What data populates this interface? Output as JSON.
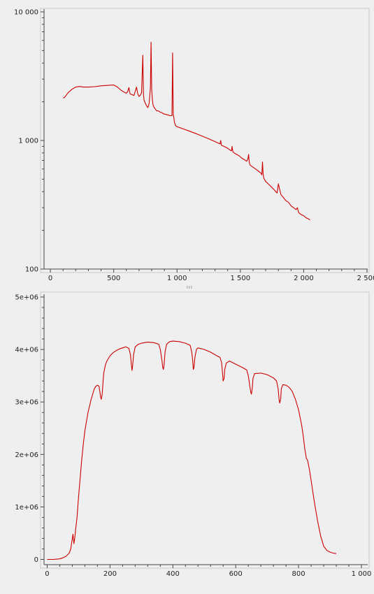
{
  "chart_data": [
    {
      "type": "line",
      "title": "",
      "xlabel": "",
      "ylabel": "",
      "xlim": [
        -50,
        2500
      ],
      "ylim": [
        100,
        10000
      ],
      "y_scale": "log",
      "grid": false,
      "legend": "none",
      "x_ticks": [
        0,
        500,
        1000,
        1500,
        2000,
        2500
      ],
      "x_tick_labels": [
        "0",
        "500",
        "1 000",
        "1 500",
        "2 000",
        "2 500"
      ],
      "y_ticks": [
        100,
        1000,
        10000
      ],
      "y_tick_labels": [
        "100",
        "1 000",
        "10 000"
      ],
      "series": [
        {
          "color": "#cc0000",
          "x": [
            100,
            110,
            140,
            170,
            200,
            230,
            260,
            300,
            350,
            400,
            450,
            500,
            530,
            560,
            590,
            600,
            610,
            620,
            625,
            630,
            640,
            650,
            660,
            670,
            680,
            690,
            700,
            710,
            720,
            730,
            735,
            740,
            745,
            750,
            760,
            770,
            780,
            790,
            795,
            800,
            805,
            810,
            820,
            830,
            840,
            850,
            860,
            870,
            880,
            890,
            900,
            910,
            920,
            930,
            940,
            950,
            960,
            965,
            970,
            975,
            980,
            990,
            1000,
            1030,
            1050,
            1100,
            1150,
            1200,
            1250,
            1300,
            1330,
            1340,
            1345,
            1350,
            1380,
            1400,
            1420,
            1430,
            1435,
            1440,
            1450,
            1470,
            1490,
            1510,
            1530,
            1550,
            1560,
            1565,
            1570,
            1575,
            1580,
            1600,
            1620,
            1640,
            1660,
            1670,
            1675,
            1680,
            1685,
            1690,
            1700,
            1720,
            1740,
            1760,
            1780,
            1790,
            1800,
            1820,
            1840,
            1860,
            1880,
            1900,
            1920,
            1940,
            1950,
            1960,
            1980,
            2000,
            2020,
            2040,
            2050
          ],
          "y": [
            2150,
            2150,
            2350,
            2500,
            2600,
            2630,
            2600,
            2600,
            2620,
            2660,
            2680,
            2700,
            2600,
            2450,
            2350,
            2330,
            2400,
            2580,
            2400,
            2300,
            2280,
            2260,
            2240,
            2400,
            2600,
            2300,
            2200,
            2250,
            2350,
            4600,
            2300,
            2050,
            2000,
            1950,
            1850,
            1800,
            1950,
            2600,
            5800,
            2500,
            2100,
            1900,
            1800,
            1750,
            1700,
            1700,
            1680,
            1650,
            1650,
            1620,
            1600,
            1600,
            1580,
            1580,
            1560,
            1560,
            1560,
            4800,
            1600,
            1500,
            1380,
            1300,
            1280,
            1250,
            1230,
            1180,
            1130,
            1080,
            1030,
            980,
            950,
            940,
            1000,
            920,
            890,
            870,
            840,
            830,
            900,
            820,
            800,
            780,
            760,
            730,
            710,
            690,
            720,
            780,
            680,
            650,
            640,
            620,
            600,
            580,
            560,
            540,
            680,
            550,
            510,
            500,
            480,
            460,
            440,
            420,
            400,
            390,
            460,
            380,
            360,
            340,
            330,
            310,
            300,
            290,
            300,
            275,
            265,
            260,
            250,
            245,
            240
          ]
        }
      ]
    },
    {
      "type": "line",
      "title": "",
      "xlabel": "",
      "ylabel": "",
      "xlim": [
        -10,
        1000
      ],
      "ylim": [
        -100000,
        5000000
      ],
      "grid": false,
      "legend": "none",
      "x_ticks": [
        0,
        200,
        400,
        600,
        800,
        1000
      ],
      "x_tick_labels": [
        "0",
        "200",
        "400",
        "600",
        "800",
        "1 000"
      ],
      "y_ticks": [
        0,
        1000000,
        2000000,
        3000000,
        4000000,
        5000000
      ],
      "y_tick_labels": [
        "0",
        "1e+06",
        "2e+06",
        "3e+06",
        "4e+06",
        "5e+06"
      ],
      "series": [
        {
          "color": "#cc0000",
          "x": [
            0,
            20,
            40,
            50,
            60,
            70,
            75,
            80,
            82,
            85,
            88,
            90,
            95,
            100,
            105,
            110,
            115,
            120,
            130,
            140,
            150,
            155,
            160,
            165,
            170,
            172,
            175,
            178,
            180,
            185,
            190,
            200,
            210,
            220,
            230,
            240,
            250,
            260,
            265,
            268,
            270,
            272,
            275,
            280,
            290,
            300,
            320,
            340,
            355,
            360,
            365,
            368,
            370,
            372,
            375,
            380,
            390,
            400,
            420,
            440,
            455,
            460,
            463,
            465,
            467,
            470,
            475,
            480,
            500,
            520,
            540,
            550,
            555,
            558,
            560,
            563,
            565,
            570,
            580,
            600,
            620,
            635,
            640,
            645,
            648,
            650,
            653,
            655,
            660,
            680,
            700,
            720,
            730,
            735,
            738,
            740,
            743,
            745,
            750,
            760,
            770,
            780,
            790,
            800,
            810,
            815,
            820,
            825,
            828,
            830,
            835,
            840,
            850,
            860,
            870,
            880,
            890,
            900,
            910,
            920
          ],
          "y": [
            0,
            0,
            10000,
            30000,
            60000,
            120000,
            200000,
            400000,
            480000,
            300000,
            420000,
            550000,
            800000,
            1200000,
            1550000,
            1900000,
            2200000,
            2450000,
            2800000,
            3050000,
            3250000,
            3300000,
            3320000,
            3300000,
            3100000,
            3050000,
            3150000,
            3400000,
            3550000,
            3700000,
            3780000,
            3880000,
            3940000,
            3980000,
            4010000,
            4030000,
            4050000,
            4020000,
            3900000,
            3700000,
            3600000,
            3700000,
            3900000,
            4050000,
            4100000,
            4120000,
            4140000,
            4130000,
            4100000,
            4000000,
            3800000,
            3650000,
            3620000,
            3700000,
            3950000,
            4100000,
            4150000,
            4160000,
            4150000,
            4120000,
            4080000,
            3950000,
            3800000,
            3620000,
            3650000,
            3850000,
            4000000,
            4030000,
            4000000,
            3950000,
            3880000,
            3850000,
            3750000,
            3550000,
            3400000,
            3450000,
            3620000,
            3740000,
            3780000,
            3720000,
            3660000,
            3610000,
            3500000,
            3300000,
            3180000,
            3150000,
            3280000,
            3450000,
            3540000,
            3550000,
            3520000,
            3460000,
            3400000,
            3250000,
            3050000,
            2980000,
            3050000,
            3250000,
            3330000,
            3320000,
            3280000,
            3200000,
            3050000,
            2850000,
            2550000,
            2350000,
            2100000,
            1920000,
            1900000,
            1850000,
            1700000,
            1500000,
            1100000,
            750000,
            450000,
            250000,
            170000,
            140000,
            120000,
            110000
          ]
        }
      ]
    }
  ]
}
